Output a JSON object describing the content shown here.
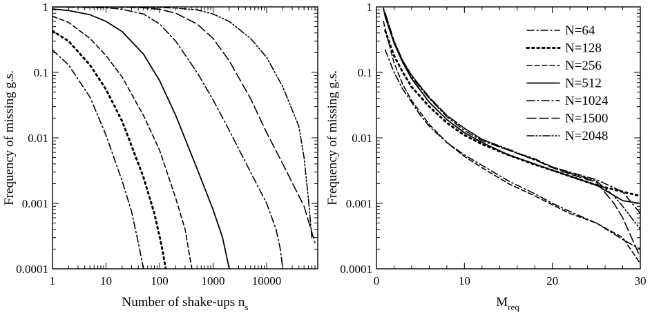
{
  "chart_data": [
    {
      "type": "line",
      "xscale": "log",
      "yscale": "log",
      "xlabel": "Number of shake-ups n",
      "xlabel_sub": "s",
      "ylabel": "Frequency of missing g.s.",
      "xlim": [
        1,
        90000
      ],
      "ylim": [
        0.0001,
        1
      ],
      "x_tick_labels": [
        "1",
        "10",
        "100",
        "1000",
        "10000"
      ],
      "x_tick_values": [
        1,
        10,
        100,
        1000,
        10000
      ],
      "y_tick_labels": [
        "0.0001",
        "0.001",
        "0.01",
        "0.1",
        "1"
      ],
      "y_tick_values": [
        0.0001,
        0.001,
        0.01,
        0.1,
        1
      ],
      "series": [
        {
          "name": "N=64",
          "x": [
            1,
            2,
            5,
            10,
            20,
            30,
            40,
            50
          ],
          "y": [
            0.22,
            0.13,
            0.042,
            0.011,
            0.0022,
            0.00075,
            0.00025,
            0.0001
          ]
        },
        {
          "name": "N=128",
          "x": [
            1,
            2,
            5,
            10,
            20,
            50,
            80,
            110,
            130
          ],
          "y": [
            0.43,
            0.3,
            0.13,
            0.055,
            0.018,
            0.0025,
            0.0007,
            0.00022,
            0.0001
          ]
        },
        {
          "name": "N=256",
          "x": [
            1,
            2,
            5,
            10,
            20,
            50,
            100,
            200,
            300,
            400
          ],
          "y": [
            0.72,
            0.58,
            0.33,
            0.18,
            0.085,
            0.022,
            0.0065,
            0.0012,
            0.0004,
            0.0001
          ]
        },
        {
          "name": "N=512",
          "x": [
            1,
            2,
            5,
            10,
            20,
            50,
            100,
            200,
            500,
            1000,
            1500,
            2000
          ],
          "y": [
            0.93,
            0.88,
            0.76,
            0.6,
            0.42,
            0.19,
            0.075,
            0.022,
            0.0034,
            0.0008,
            0.0003,
            0.0001
          ]
        },
        {
          "name": "N=1024",
          "x": [
            1,
            10,
            20,
            50,
            100,
            200,
            500,
            1000,
            2000,
            5000,
            10000,
            15000,
            18000,
            20000
          ],
          "y": [
            1.0,
            0.97,
            0.92,
            0.78,
            0.55,
            0.3,
            0.1,
            0.038,
            0.013,
            0.003,
            0.001,
            0.0004,
            0.0002,
            0.0001
          ]
        },
        {
          "name": "N=1500",
          "x": [
            1,
            20,
            50,
            100,
            200,
            500,
            1000,
            2000,
            5000,
            10000,
            20000,
            50000,
            80000
          ],
          "y": [
            1.0,
            0.99,
            0.97,
            0.92,
            0.8,
            0.55,
            0.33,
            0.15,
            0.04,
            0.012,
            0.004,
            0.0009,
            0.00025
          ]
        },
        {
          "name": "N=2048",
          "x": [
            1,
            50,
            100,
            200,
            500,
            1000,
            2000,
            5000,
            10000,
            20000,
            40000,
            50000,
            60000,
            70000
          ],
          "y": [
            1.0,
            0.99,
            0.98,
            0.96,
            0.9,
            0.78,
            0.6,
            0.33,
            0.17,
            0.06,
            0.015,
            0.005,
            0.0012,
            0.0003
          ]
        }
      ]
    },
    {
      "type": "line",
      "xscale": "linear",
      "yscale": "log",
      "xlabel": "M",
      "xlabel_sub": "req",
      "ylabel": "Frequency of missing g.s.",
      "xlim": [
        0,
        30
      ],
      "ylim": [
        0.0001,
        1
      ],
      "x_tick_labels": [
        "0",
        "10",
        "20",
        "30"
      ],
      "x_tick_values": [
        0,
        10,
        20,
        30
      ],
      "y_tick_labels": [
        "0.0001",
        "0.001",
        "0.01",
        "0.1",
        "1"
      ],
      "y_tick_values": [
        0.0001,
        0.001,
        0.01,
        0.1,
        1
      ],
      "legend_position": "top-right",
      "series": [
        {
          "name": "N=64",
          "x": [
            1,
            2,
            3,
            4,
            5,
            6,
            8,
            10,
            12,
            15,
            18,
            20,
            22,
            25,
            28,
            30
          ],
          "y": [
            0.22,
            0.1,
            0.055,
            0.035,
            0.022,
            0.015,
            0.0085,
            0.0055,
            0.0038,
            0.0022,
            0.0014,
            0.001,
            0.00075,
            0.0005,
            0.00028,
            0.0002
          ]
        },
        {
          "name": "N=128",
          "x": [
            1,
            2,
            3,
            4,
            6,
            8,
            10,
            12,
            15,
            18,
            20,
            22,
            25,
            28,
            30
          ],
          "y": [
            0.43,
            0.18,
            0.1,
            0.06,
            0.03,
            0.017,
            0.011,
            0.008,
            0.0055,
            0.0039,
            0.0032,
            0.0026,
            0.0019,
            0.0015,
            0.0013
          ]
        },
        {
          "name": "N=256",
          "x": [
            0.8,
            1,
            2,
            3,
            4,
            6,
            8,
            10,
            12,
            15,
            18,
            20,
            22,
            25,
            28,
            30
          ],
          "y": [
            0.6,
            0.45,
            0.14,
            0.065,
            0.037,
            0.016,
            0.0085,
            0.0052,
            0.0035,
            0.002,
            0.0013,
            0.00095,
            0.0007,
            0.0005,
            0.0003,
            0.00012
          ]
        },
        {
          "name": "N=512",
          "x": [
            0.8,
            1,
            2,
            3,
            4,
            6,
            8,
            10,
            12,
            15,
            18,
            20,
            22,
            25,
            28,
            30
          ],
          "y": [
            0.95,
            0.7,
            0.28,
            0.14,
            0.08,
            0.035,
            0.019,
            0.012,
            0.0085,
            0.0055,
            0.004,
            0.0032,
            0.0026,
            0.0019,
            0.0011,
            0.001
          ]
        },
        {
          "name": "N=1024",
          "x": [
            1,
            2,
            3,
            4,
            6,
            8,
            10,
            12,
            15,
            18,
            20,
            22,
            25,
            28,
            30
          ],
          "y": [
            0.75,
            0.28,
            0.14,
            0.085,
            0.04,
            0.021,
            0.013,
            0.009,
            0.0065,
            0.0048,
            0.0036,
            0.003,
            0.0023,
            0.0015,
            0.0007
          ]
        },
        {
          "name": "N=1500",
          "x": [
            1,
            2,
            3,
            4,
            6,
            8,
            10,
            12,
            15,
            18,
            20,
            22,
            25,
            27,
            28,
            29,
            30
          ],
          "y": [
            0.8,
            0.3,
            0.15,
            0.09,
            0.042,
            0.022,
            0.014,
            0.0095,
            0.0065,
            0.0046,
            0.0035,
            0.0028,
            0.0021,
            0.001,
            0.0006,
            0.0003,
            0.00015
          ]
        },
        {
          "name": "N=2048",
          "x": [
            1,
            2,
            3,
            4,
            6,
            8,
            10,
            12,
            15,
            18,
            20,
            22,
            25,
            27,
            28,
            30
          ],
          "y": [
            0.8,
            0.3,
            0.15,
            0.09,
            0.041,
            0.022,
            0.014,
            0.0095,
            0.0067,
            0.0046,
            0.0036,
            0.0029,
            0.0022,
            0.0013,
            0.0009,
            0.0004
          ]
        }
      ]
    }
  ],
  "styles": {
    "line_color": "#000000",
    "background": "#ffffff"
  }
}
